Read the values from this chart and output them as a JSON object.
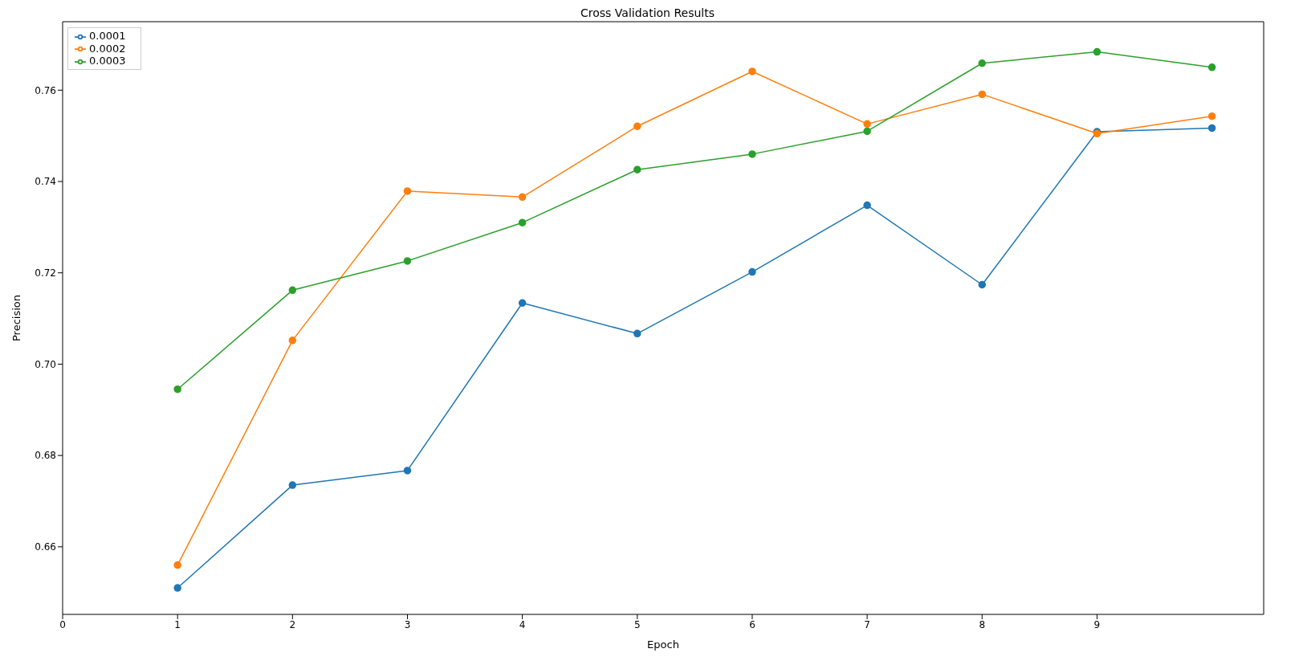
{
  "chart_data": {
    "type": "line",
    "title": "Cross Validation Results",
    "xlabel": "Epoch",
    "ylabel": "Precision",
    "x": [
      1,
      2,
      3,
      4,
      5,
      6,
      7,
      8,
      9,
      10
    ],
    "series": [
      {
        "name": "0.0001",
        "color": "#1f77b4",
        "values": [
          0.651,
          0.6735,
          0.6767,
          0.7134,
          0.7067,
          0.7202,
          0.7348,
          0.7174,
          0.7509,
          0.7517
        ]
      },
      {
        "name": "0.0002",
        "color": "#ff7f0e",
        "values": [
          0.656,
          0.7052,
          0.7379,
          0.7366,
          0.7521,
          0.7641,
          0.7526,
          0.7591,
          0.7505,
          0.7543
        ]
      },
      {
        "name": "0.0003",
        "color": "#2ca02c",
        "values": [
          0.6945,
          0.7162,
          0.7226,
          0.731,
          0.7426,
          0.746,
          0.751,
          0.7659,
          0.7684,
          0.765
        ]
      }
    ],
    "xlim": [
      0,
      10.45
    ],
    "xticks": [
      0,
      1,
      2,
      3,
      4,
      5,
      6,
      7,
      8,
      9
    ],
    "ylim": [
      0.6452,
      0.775
    ],
    "yticks": [
      {
        "value": 0.66,
        "label": "0.66"
      },
      {
        "value": 0.68,
        "label": "0.68"
      },
      {
        "value": 0.7,
        "label": "0.70"
      },
      {
        "value": 0.72,
        "label": "0.72"
      },
      {
        "value": 0.74,
        "label": "0.74"
      },
      {
        "value": 0.76,
        "label": "0.76"
      }
    ],
    "grid": false,
    "legend": "top left",
    "marker": "circle",
    "line_style": "solid"
  }
}
